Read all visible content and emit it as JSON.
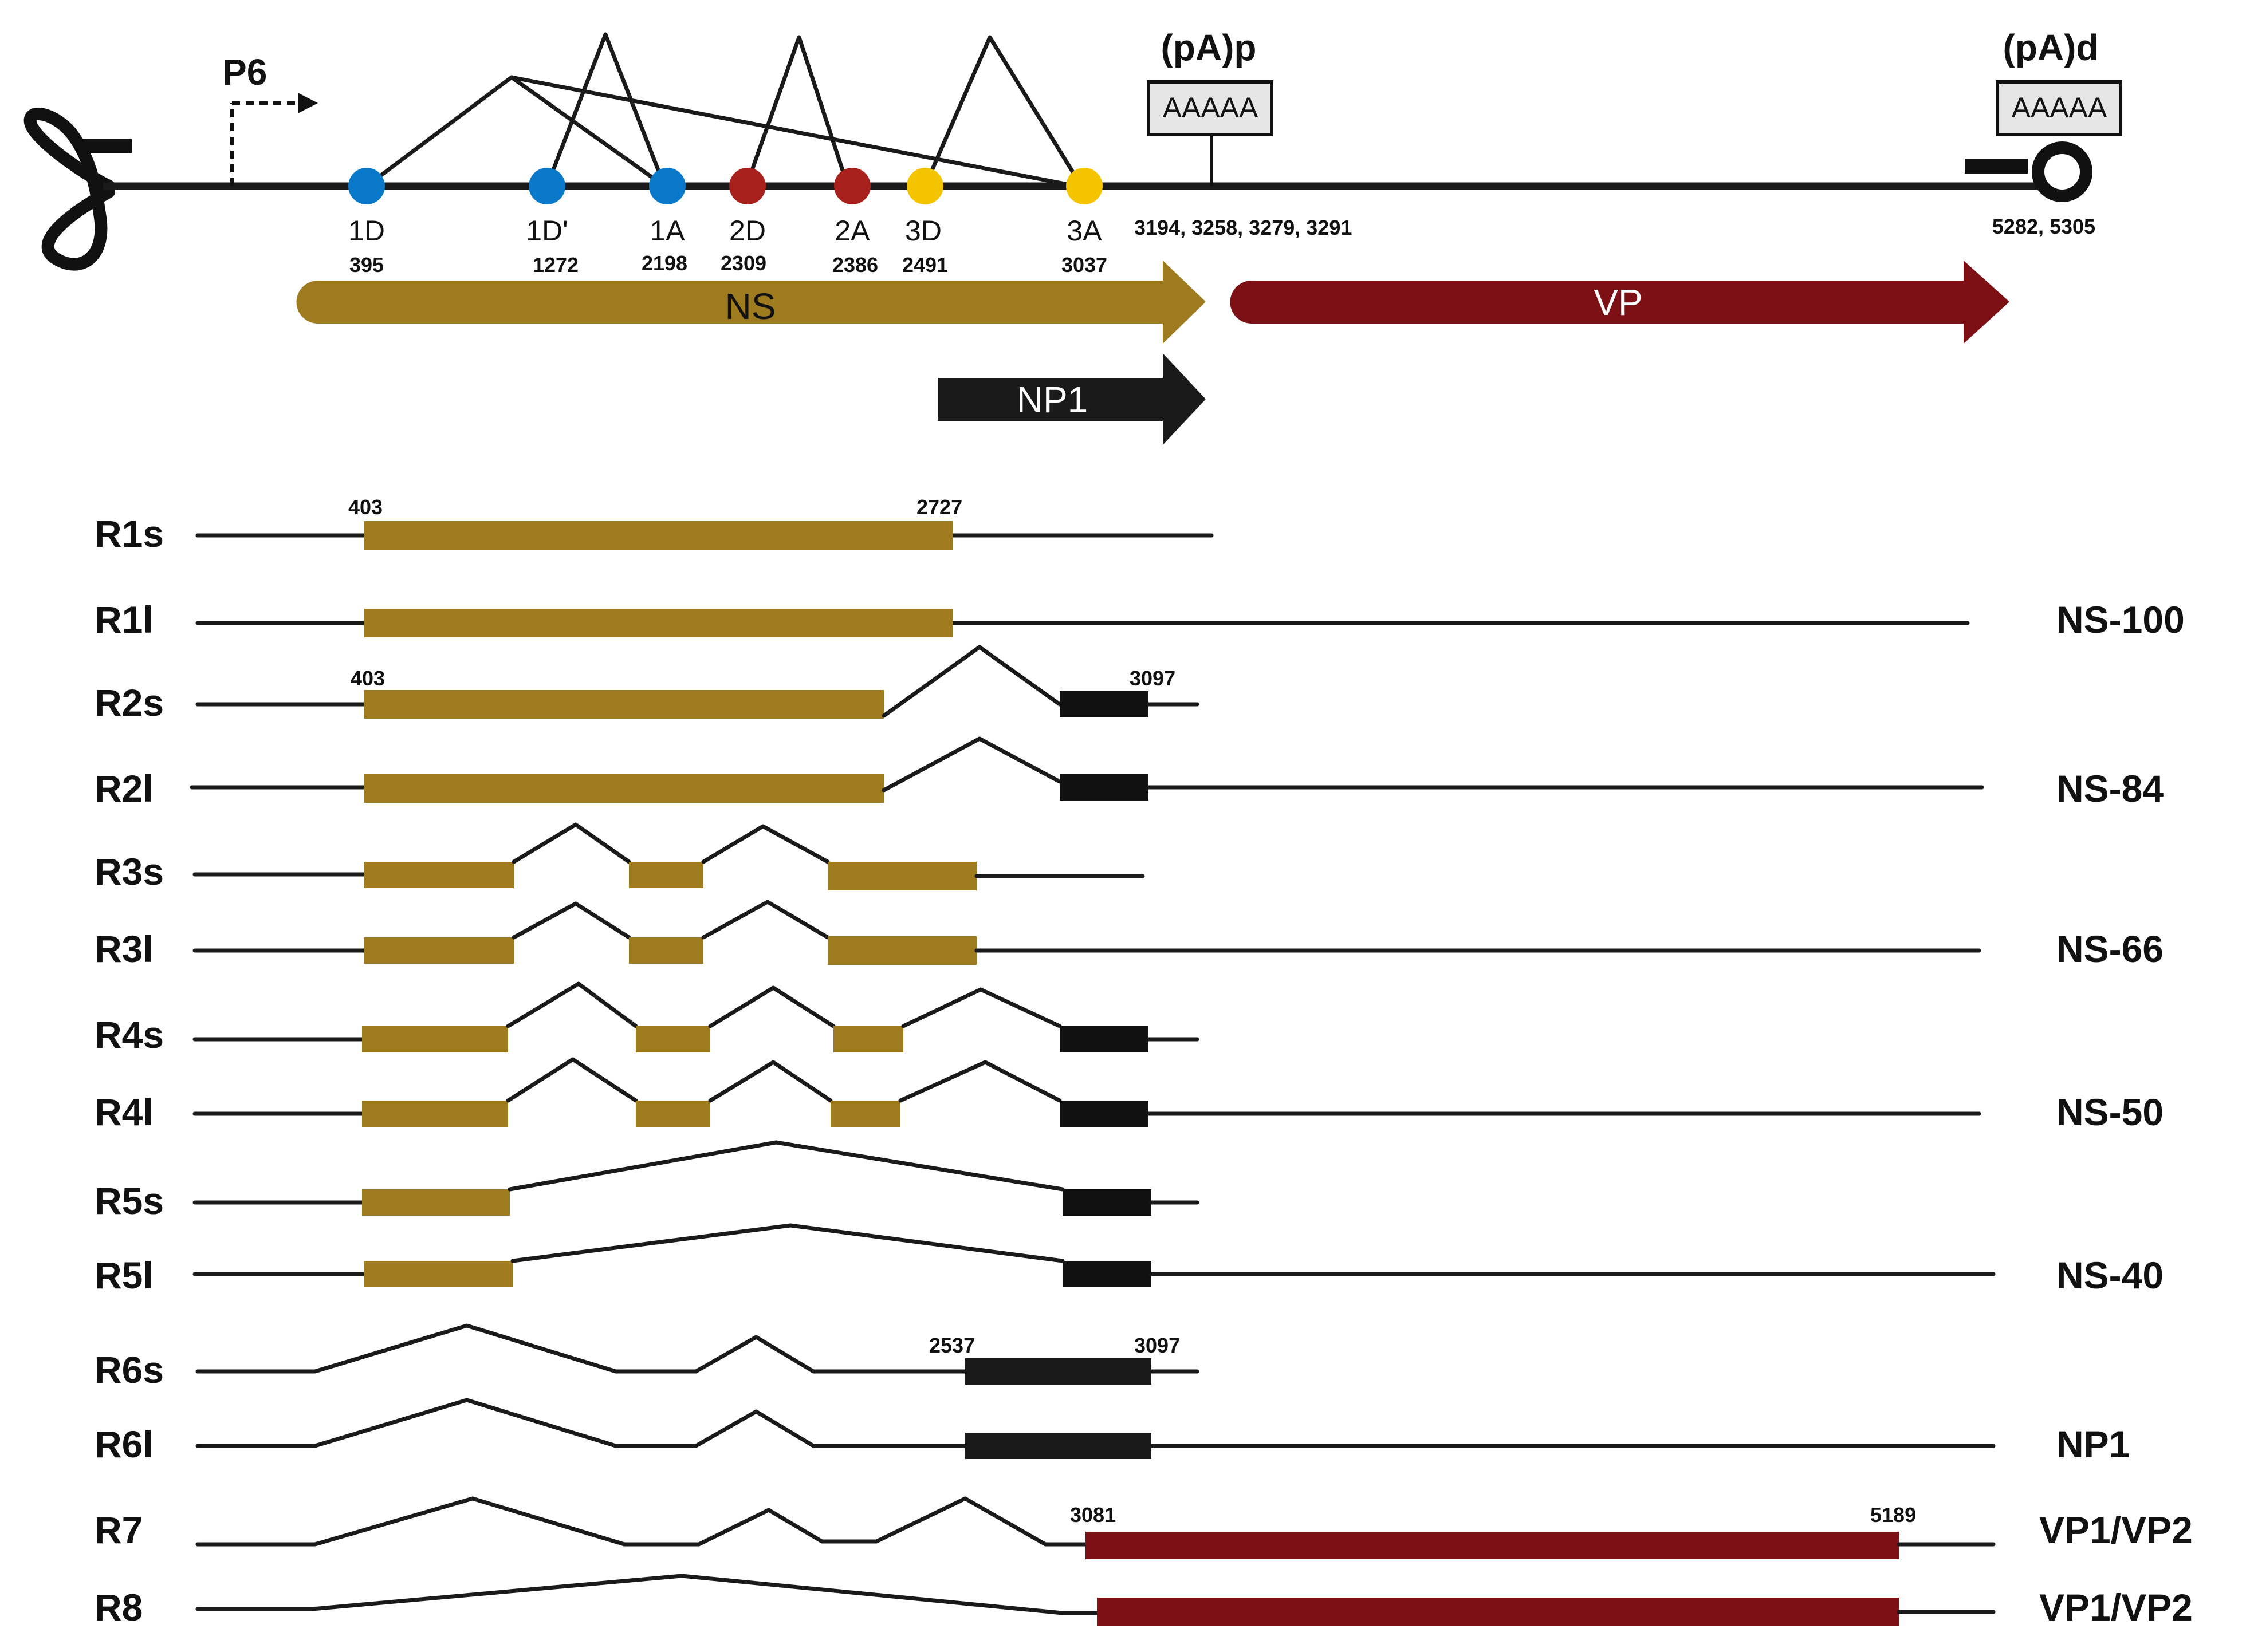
{
  "colors": {
    "ns_exon": "#9e7b1f",
    "vp_exon": "#7d1015",
    "np1_exon": "#111111",
    "donor_blue": "#0a78c8",
    "donor_red": "#a8201c",
    "donor_yellow": "#f5c400",
    "line": "#1a1a1a"
  },
  "genome": {
    "promoter_label": "P6",
    "polya_proximal": {
      "label": "(pA)p",
      "box_text": "AAAAA",
      "positions": "3194, 3258, 3279, 3291"
    },
    "polya_distal": {
      "label": "(pA)d",
      "box_text": "AAAAA",
      "positions": "5282, 5305"
    },
    "splice_sites": [
      {
        "name": "1D",
        "position": "395",
        "color": "blue"
      },
      {
        "name": "1D'",
        "position": "1272",
        "color": "blue"
      },
      {
        "name": "1A",
        "position": "2198",
        "color": "blue"
      },
      {
        "name": "2D",
        "position": "2309",
        "color": "red"
      },
      {
        "name": "2A",
        "position": "2386",
        "color": "red"
      },
      {
        "name": "3D",
        "position": "2491",
        "color": "yellow"
      },
      {
        "name": "3A",
        "position": "3037",
        "color": "yellow"
      }
    ],
    "orfs": [
      {
        "name": "NS",
        "type": "ns"
      },
      {
        "name": "VP",
        "type": "vp"
      },
      {
        "name": "NP1",
        "type": "np1"
      }
    ]
  },
  "transcripts": [
    {
      "name": "R1s",
      "protein": ""
    },
    {
      "name": "R1l",
      "protein": "NS-100"
    },
    {
      "name": "R2s",
      "protein": ""
    },
    {
      "name": "R2l",
      "protein": "NS-84"
    },
    {
      "name": "R3s",
      "protein": ""
    },
    {
      "name": "R3l",
      "protein": "NS-66"
    },
    {
      "name": "R4s",
      "protein": ""
    },
    {
      "name": "R4l",
      "protein": "NS-50"
    },
    {
      "name": "R5s",
      "protein": ""
    },
    {
      "name": "R5l",
      "protein": "NS-40"
    },
    {
      "name": "R6s",
      "protein": ""
    },
    {
      "name": "R6l",
      "protein": "NP1"
    },
    {
      "name": "R7",
      "protein": "VP1/VP2"
    },
    {
      "name": "R8",
      "protein": "VP1/VP2"
    }
  ],
  "coordinate_labels": {
    "r1s_start": "403",
    "r1s_end": "2727",
    "r2s_start": "403",
    "r2s_end": "3097",
    "r6s_start": "2537",
    "r6s_end": "3097",
    "r7_start": "3081",
    "r7_end": "5189"
  }
}
